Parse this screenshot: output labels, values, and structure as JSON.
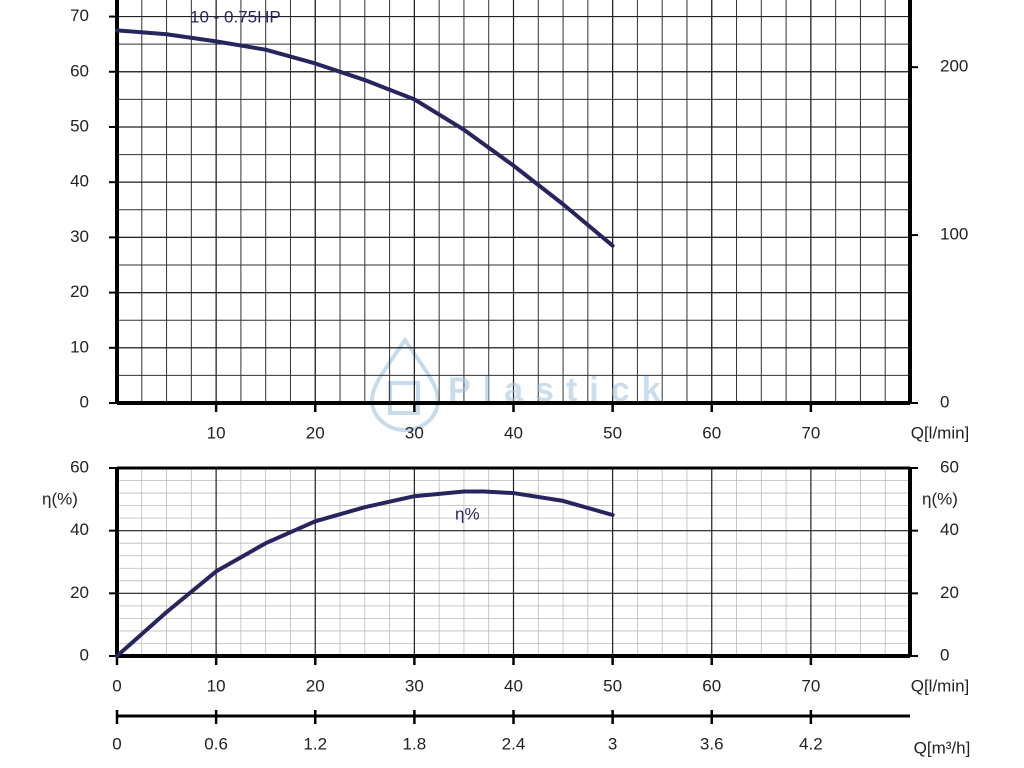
{
  "chart_data": [
    {
      "type": "line",
      "xlim": [
        0,
        80
      ],
      "xticks": [
        10,
        20,
        30,
        40,
        50,
        60,
        70
      ],
      "xlabel": "Q[l/min]",
      "ylim": [
        0,
        73
      ],
      "yticks": [
        0,
        10,
        20,
        30,
        40,
        50,
        60,
        70
      ],
      "y2lim": [
        0,
        240
      ],
      "y2ticks": [
        0,
        100,
        200
      ],
      "grid": true,
      "series": [
        {
          "name": "10 - 0.75HP",
          "color": "#27255e",
          "x": [
            0,
            5,
            10,
            15,
            20,
            25,
            30,
            35,
            40,
            45,
            50
          ],
          "values": [
            67.5,
            66.8,
            65.5,
            64,
            61.5,
            58.5,
            55,
            49.5,
            43,
            36,
            28.5
          ]
        }
      ],
      "watermark": "Plastick"
    },
    {
      "type": "line",
      "xlim": [
        0,
        80
      ],
      "xticks": [
        0,
        10,
        20,
        30,
        40,
        50,
        60,
        70
      ],
      "xlabel": "Q[l/min]",
      "ylim": [
        0,
        60
      ],
      "yticks": [
        0,
        20,
        40,
        60
      ],
      "ylabel": "η(%)",
      "y2lim": [
        0,
        60
      ],
      "y2ticks": [
        0,
        20,
        40,
        60
      ],
      "y2label": "η(%)",
      "grid": true,
      "x2lim": [
        0,
        4.8
      ],
      "x2ticks": [
        0,
        0.6,
        1.2,
        1.8,
        2.4,
        3,
        3.6,
        4.2
      ],
      "x2label": "Q[m³/h]",
      "series": [
        {
          "name": "η%",
          "color": "#27255e",
          "x": [
            0,
            5,
            10,
            15,
            20,
            25,
            30,
            35,
            37,
            40,
            45,
            50
          ],
          "values": [
            0,
            14,
            27,
            36,
            43,
            47.5,
            51,
            52.5,
            52.5,
            52,
            49.5,
            45
          ]
        }
      ]
    }
  ]
}
